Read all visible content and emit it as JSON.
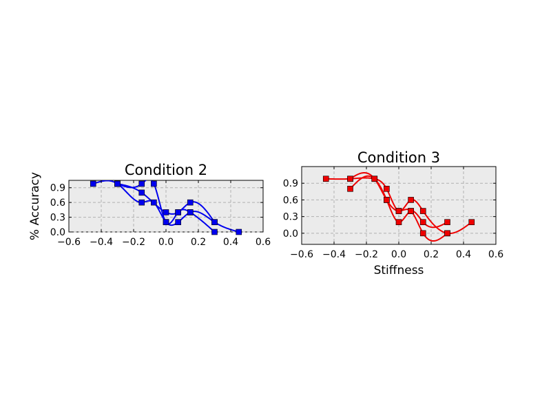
{
  "chart_data": [
    {
      "type": "line",
      "title": "Condition 2",
      "xlabel": "",
      "ylabel": "% Accuracy",
      "xlim": [
        -0.6,
        0.6
      ],
      "ylim": [
        0.0,
        1.05
      ],
      "xticks": [
        "−0.6",
        "−0.4",
        "−0.2",
        "0.0",
        "0.2",
        "0.4",
        "0.6"
      ],
      "yticks": [
        "0.0",
        "0.3",
        "0.6",
        "0.9"
      ],
      "grid": true,
      "color": "#0000ee",
      "marker": "square",
      "series": [
        {
          "x": [
            -0.3,
            -0.15,
            0.0,
            0.075,
            0.15,
            0.3
          ],
          "y": [
            0.98,
            0.8,
            0.4,
            0.4,
            0.6,
            0.2
          ]
        },
        {
          "x": [
            -0.45,
            -0.3,
            -0.15,
            -0.075,
            0.0,
            0.075,
            0.15,
            0.3,
            0.45
          ],
          "y": [
            0.98,
            0.98,
            0.6,
            0.6,
            0.2,
            0.2,
            0.4,
            0.2,
            0.0
          ]
        },
        {
          "x": [
            -0.3,
            -0.15,
            -0.075,
            0.0,
            0.075,
            0.15,
            0.3
          ],
          "y": [
            0.98,
            0.98,
            0.98,
            0.2,
            0.4,
            0.4,
            0.0
          ]
        }
      ]
    },
    {
      "type": "line",
      "title": "Condition 3",
      "xlabel": "Stiffness",
      "ylabel": "",
      "xlim": [
        -0.6,
        0.6
      ],
      "ylim": [
        -0.2,
        1.2
      ],
      "xticks": [
        "−0.6",
        "−0.4",
        "−0.2",
        "0.0",
        "0.2",
        "0.4",
        "0.6"
      ],
      "yticks": [
        "0.0",
        "0.3",
        "0.6",
        "0.9"
      ],
      "grid": true,
      "color": "#ee0000",
      "marker": "square",
      "series": [
        {
          "x": [
            -0.45,
            -0.3,
            -0.15,
            -0.075,
            0.0,
            0.075,
            0.15,
            0.3,
            0.45
          ],
          "y": [
            0.98,
            0.98,
            0.98,
            0.8,
            0.4,
            0.6,
            0.4,
            0.0,
            0.2
          ]
        },
        {
          "x": [
            -0.3,
            -0.15,
            -0.075,
            0.0,
            0.075,
            0.15,
            0.3
          ],
          "y": [
            0.8,
            0.98,
            0.6,
            0.2,
            0.4,
            0.2,
            0.2
          ]
        },
        {
          "x": [
            -0.3,
            -0.15,
            -0.075,
            0.0,
            0.075,
            0.15,
            0.3
          ],
          "y": [
            0.98,
            0.98,
            0.6,
            0.4,
            0.4,
            0.0,
            0.0
          ]
        }
      ]
    }
  ]
}
